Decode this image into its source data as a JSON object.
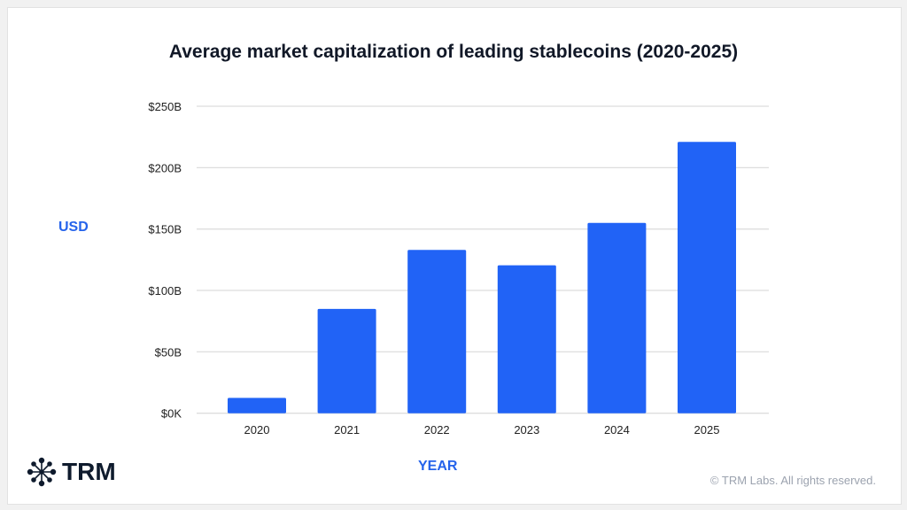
{
  "chart_data": {
    "type": "bar",
    "title": "Average market capitalization of leading stablecoins (2020-2025)",
    "xlabel": "YEAR",
    "ylabel": "USD",
    "categories": [
      "2020",
      "2021",
      "2022",
      "2023",
      "2024",
      "2025"
    ],
    "values": [
      12.5,
      85,
      133,
      120.5,
      155,
      221
    ],
    "unit": "billion USD",
    "ylim": [
      0,
      250
    ],
    "yticks": [
      0,
      50,
      100,
      150,
      200,
      250
    ],
    "ytick_labels": [
      "$0K",
      "$50B",
      "$100B",
      "$150B",
      "$200B",
      "$250B"
    ],
    "grid": true,
    "legend": "none",
    "bar_color": "#2163f6"
  },
  "brand": {
    "name": "TRM",
    "icon": "network-node-icon"
  },
  "footer": {
    "copyright": "© TRM Labs. All rights reserved."
  }
}
